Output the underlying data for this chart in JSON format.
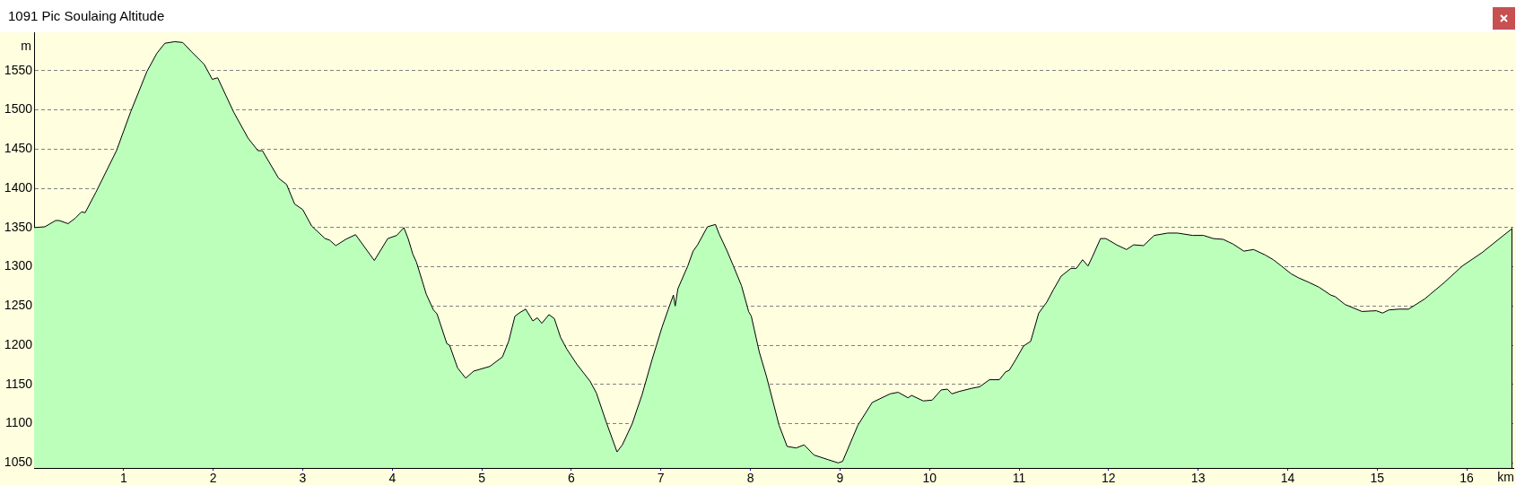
{
  "chart_data": {
    "type": "area",
    "title": "1091 Pic Soulaing Altitude",
    "xlabel": "km",
    "ylabel": "m",
    "x": [
      0,
      0.12,
      0.24,
      0.28,
      0.38,
      0.46,
      0.53,
      0.57,
      0.69,
      0.92,
      1.08,
      1.26,
      1.37,
      1.46,
      1.57,
      1.66,
      1.76,
      1.9,
      1.99,
      2.05,
      2.14,
      2.23,
      2.39,
      2.5,
      2.55,
      2.73,
      2.82,
      2.91,
      3,
      3.1,
      3.25,
      3.3,
      3.37,
      3.48,
      3.59,
      3.8,
      3.95,
      4.05,
      4.13,
      4.18,
      4.23,
      4.27,
      4.38,
      4.46,
      4.5,
      4.61,
      4.64,
      4.73,
      4.82,
      4.91,
      5.09,
      5.23,
      5.3,
      5.37,
      5.43,
      5.49,
      5.57,
      5.62,
      5.67,
      5.75,
      5.81,
      5.88,
      5.95,
      6.06,
      6.21,
      6.28,
      6.39,
      6.51,
      6.57,
      6.68,
      6.79,
      6.9,
      7.01,
      7.08,
      7.14,
      7.16,
      7.19,
      7.3,
      7.36,
      7.41,
      7.52,
      7.61,
      7.65,
      7.74,
      7.81,
      7.9,
      7.98,
      8.01,
      8.1,
      8.18,
      8.32,
      8.41,
      8.51,
      8.6,
      8.71,
      8.87,
      8.98,
      9.03,
      9.2,
      9.36,
      9.56,
      9.65,
      9.76,
      9.8,
      9.93,
      10.03,
      10.13,
      10.2,
      10.25,
      10.33,
      10.47,
      10.56,
      10.67,
      10.78,
      10.85,
      10.89,
      10.96,
      11.05,
      11.13,
      11.22,
      11.31,
      11.38,
      11.47,
      11.58,
      11.64,
      11.71,
      11.77,
      11.82,
      11.91,
      11.97,
      12.09,
      12.2,
      12.28,
      12.39,
      12.51,
      12.66,
      12.77,
      12.94,
      13.06,
      13.17,
      13.28,
      13.39,
      13.51,
      13.62,
      13.75,
      13.84,
      13.93,
      14.04,
      14.12,
      14.24,
      14.35,
      14.48,
      14.53,
      14.64,
      14.83,
      14.99,
      15.06,
      15.13,
      15.24,
      15.35,
      15.53,
      15.75,
      15.95,
      16.17,
      16.41,
      16.51
    ],
    "values": [
      1350,
      1351,
      1359,
      1359,
      1355,
      1362,
      1370,
      1369,
      1395,
      1448,
      1498,
      1549,
      1572,
      1585,
      1587,
      1586,
      1574,
      1558,
      1539,
      1541,
      1519,
      1497,
      1464,
      1448,
      1448,
      1413,
      1405,
      1380,
      1373,
      1352,
      1336,
      1334,
      1327,
      1335,
      1341,
      1308,
      1336,
      1340,
      1350,
      1335,
      1316,
      1306,
      1265,
      1245,
      1240,
      1202,
      1200,
      1171,
      1158,
      1167,
      1173,
      1185,
      1205,
      1237,
      1242,
      1246,
      1231,
      1235,
      1228,
      1239,
      1234,
      1210,
      1195,
      1176,
      1154,
      1139,
      1102,
      1064,
      1073,
      1100,
      1137,
      1181,
      1222,
      1245,
      1264,
      1250,
      1272,
      1301,
      1320,
      1328,
      1351,
      1354,
      1342,
      1320,
      1301,
      1276,
      1243,
      1237,
      1191,
      1160,
      1098,
      1071,
      1069,
      1073,
      1060,
      1054,
      1050,
      1052,
      1098,
      1127,
      1138,
      1140,
      1133,
      1136,
      1129,
      1130,
      1143,
      1144,
      1138,
      1141,
      1145,
      1147,
      1156,
      1156,
      1166,
      1168,
      1181,
      1199,
      1205,
      1241,
      1255,
      1270,
      1288,
      1298,
      1298,
      1309,
      1301,
      1313,
      1336,
      1336,
      1328,
      1322,
      1328,
      1327,
      1340,
      1343,
      1343,
      1340,
      1340,
      1336,
      1335,
      1329,
      1320,
      1322,
      1315,
      1309,
      1301,
      1291,
      1286,
      1280,
      1274,
      1264,
      1262,
      1252,
      1243,
      1244,
      1241,
      1245,
      1246,
      1246,
      1259,
      1280,
      1301,
      1318,
      1340,
      1349
    ],
    "color": "#bbffbb",
    "xlim": [
      0,
      16.52
    ],
    "ylim": [
      1043.5,
      1599
    ],
    "xticks": [
      1,
      2,
      3,
      4,
      5,
      6,
      7,
      8,
      9,
      10,
      11,
      12,
      13,
      14,
      15,
      16
    ],
    "yticks": [
      1050,
      1100,
      1150,
      1200,
      1250,
      1300,
      1350,
      1400,
      1450,
      1500,
      1550
    ],
    "grid": "y",
    "legend": false,
    "marker": "none"
  }
}
